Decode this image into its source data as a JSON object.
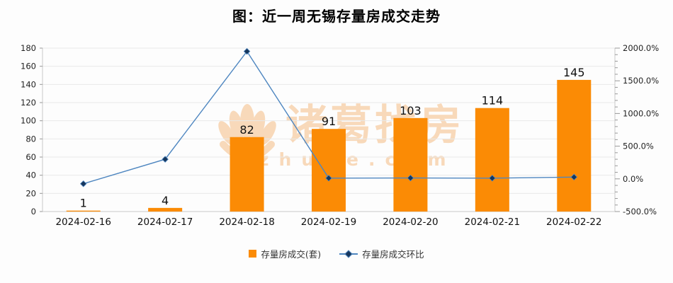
{
  "header": {
    "title": "图：近一周无锡存量房成交走势"
  },
  "watermark": {
    "brand": "诸葛找房",
    "domain": "zhuge.com"
  },
  "colors": {
    "bar": "#fb8b05",
    "line": "#4e86c0",
    "line_marker": "#16365c",
    "grid": "#e9e9e9",
    "axis": "#c9c9c9",
    "tick": "#999999",
    "label": "#111111",
    "watermark": "#f8d9ba"
  },
  "chart_data": {
    "type": "bar",
    "subtype": "combo-bar-line-dual-axis",
    "title": "图：近一周无锡存量房成交走势",
    "categories": [
      "2024-02-16",
      "2024-02-17",
      "2024-02-18",
      "2024-02-19",
      "2024-02-20",
      "2024-02-21",
      "2024-02-22"
    ],
    "series": [
      {
        "name": "存量房成交(套)",
        "type": "bar",
        "y_axis": "left",
        "color": "#fb8b05",
        "values": [
          1,
          4,
          82,
          91,
          103,
          114,
          145
        ],
        "data_labels": [
          "1",
          "4",
          "82",
          "91",
          "103",
          "114",
          "145"
        ]
      },
      {
        "name": "存量房成交环比",
        "type": "line",
        "y_axis": "right",
        "color": "#4e86c0",
        "marker": "diamond",
        "values_percent": [
          -75.0,
          300.0,
          1950.0,
          11.0,
          13.2,
          10.7,
          27.2
        ]
      }
    ],
    "axes": {
      "y_left": {
        "min": 0,
        "max": 180,
        "step": 20,
        "tick_labels": [
          "0",
          "20",
          "40",
          "60",
          "80",
          "100",
          "120",
          "140",
          "160",
          "180"
        ]
      },
      "y_right": {
        "min": -500,
        "max": 2000,
        "major_step": 500,
        "minor_step": 100,
        "tick_labels": [
          "-500.0%",
          "0.0%",
          "500.0%",
          "1000.0%",
          "1500.0%",
          "2000.0%"
        ]
      }
    },
    "grid": true,
    "legend_position": "bottom"
  }
}
